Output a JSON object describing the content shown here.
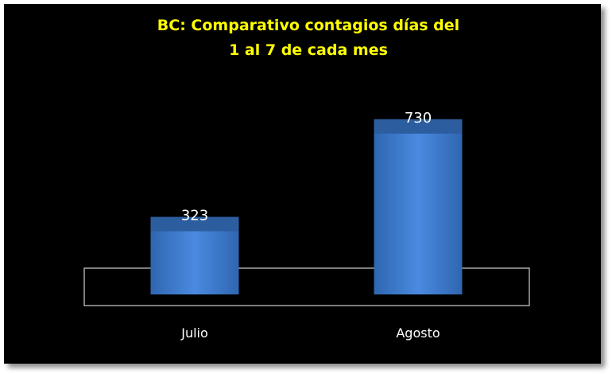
{
  "chart_data": {
    "type": "bar",
    "title": "BC: Comparativo contagios días del",
    "subtitle": "1 al 7 de cada mes",
    "categories": [
      "Julio",
      "Agosto"
    ],
    "values": [
      323,
      730
    ],
    "xlabel": "",
    "ylabel": "",
    "ylim": [
      0,
      800
    ],
    "grid": false,
    "legend": "none",
    "data_labels": [
      "323",
      "730"
    ],
    "colors": {
      "background": "#000000",
      "title": "#ffff00",
      "bar_face": "#3a78c8",
      "bar_top": "#2c5d9e",
      "text": "#ffffff",
      "floor_outline": "#d0d0d0"
    }
  }
}
